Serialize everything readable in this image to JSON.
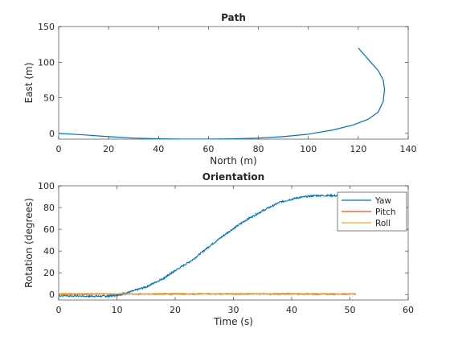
{
  "colors": {
    "background": "#ffffff",
    "axis": "#262626",
    "yaw": "#0072BD",
    "pitch": "#D95319",
    "roll": "#EDB120"
  },
  "chart_data": [
    {
      "type": "line",
      "title": "Path",
      "xlabel": "North (m)",
      "ylabel": "East (m)",
      "xlim": [
        0,
        140
      ],
      "ylim": [
        -8,
        150
      ],
      "xticks": [
        0,
        20,
        40,
        60,
        80,
        100,
        120,
        140
      ],
      "yticks": [
        0,
        50,
        100,
        150
      ],
      "grid": false,
      "series": [
        {
          "color": "#0072BD",
          "x": [
            0,
            10,
            20,
            30,
            40,
            50,
            60,
            70,
            80,
            90,
            100,
            110,
            118,
            124,
            128,
            130,
            130.5,
            130,
            128,
            125,
            122,
            120
          ],
          "y": [
            0,
            -2,
            -4.5,
            -6.5,
            -7.5,
            -8,
            -8,
            -7.5,
            -6.5,
            -4.5,
            -1,
            5,
            12,
            20,
            30,
            45,
            62,
            75,
            88,
            100,
            112,
            120
          ]
        }
      ]
    },
    {
      "type": "line",
      "title": "Orientation",
      "xlabel": "Time (s)",
      "ylabel": "Rotation (degrees)",
      "xlim": [
        0,
        60
      ],
      "ylim": [
        -5,
        100
      ],
      "xticks": [
        0,
        10,
        20,
        30,
        40,
        50,
        60
      ],
      "yticks": [
        0,
        20,
        40,
        60,
        80,
        100
      ],
      "grid": false,
      "legend": "top-right",
      "series": [
        {
          "name": "Yaw",
          "color": "#0072BD",
          "x": [
            0,
            5,
            8,
            10,
            12,
            15,
            18,
            20,
            23,
            26,
            29,
            32,
            35,
            38,
            41,
            44,
            47,
            50,
            51
          ],
          "y": [
            -1,
            -1.5,
            -1.5,
            -0.5,
            2,
            7,
            15,
            22,
            32,
            45,
            57,
            68,
            77,
            85,
            89,
            91,
            91,
            90,
            90
          ]
        },
        {
          "name": "Pitch",
          "color": "#D95319",
          "x": [
            0,
            10,
            20,
            30,
            40,
            51
          ],
          "y": [
            0.2,
            0.4,
            0.3,
            0.4,
            0.3,
            0.3
          ]
        },
        {
          "name": "Roll",
          "color": "#EDB120",
          "x": [
            0,
            10,
            20,
            30,
            40,
            51
          ],
          "y": [
            1,
            0.8,
            1,
            0.9,
            1,
            0.9
          ]
        }
      ]
    }
  ]
}
